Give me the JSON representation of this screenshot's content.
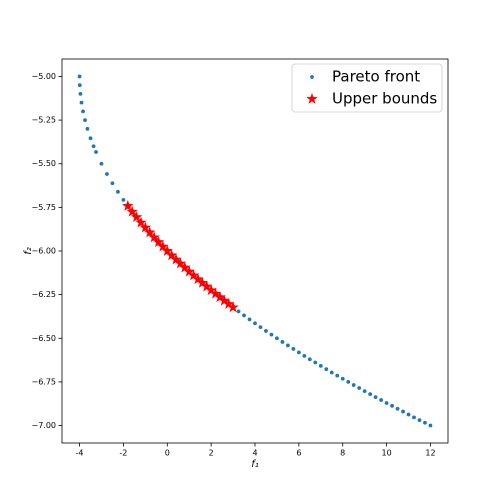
{
  "chart_data": {
    "type": "scatter",
    "x_label": "f₁",
    "y_label": "f₂",
    "xlim": [
      -4.8,
      12.8
    ],
    "ylim": [
      -7.1,
      -4.9
    ],
    "xticks": [
      -4,
      -2,
      0,
      2,
      4,
      6,
      8,
      10,
      12
    ],
    "yticks": [
      {
        "value": -5,
        "label": "−5.00"
      },
      {
        "value": -5.25,
        "label": "−5.25"
      },
      {
        "value": -5.5,
        "label": "−5.50"
      },
      {
        "value": -5.75,
        "label": "−5.75"
      },
      {
        "value": -6,
        "label": "−6.00"
      },
      {
        "value": -6.25,
        "label": "−6.25"
      },
      {
        "value": -6.5,
        "label": "−6.50"
      },
      {
        "value": -6.75,
        "label": "−6.75"
      },
      {
        "value": -7,
        "label": "−7.00"
      }
    ],
    "legend": "upper right",
    "series": [
      {
        "name": "Pareto front",
        "color": "#1f77b4",
        "marker": "dot",
        "x": [
          -4,
          -3.99,
          -3.96,
          -3.91,
          -3.84,
          -3.75,
          -3.64,
          -3.5,
          -3.36,
          -3.25,
          -3,
          -2.75,
          -2.5,
          -2.25,
          -2,
          -1.75,
          -1.5,
          -1.25,
          -1,
          -0.75,
          -0.5,
          -0.25,
          0,
          0.25,
          0.5,
          0.75,
          1,
          1.25,
          1.5,
          1.75,
          2,
          2.25,
          2.5,
          2.75,
          3,
          3.25,
          3.5,
          3.75,
          4,
          4.25,
          4.5,
          4.75,
          5,
          5.25,
          5.5,
          5.75,
          6,
          6.25,
          6.5,
          6.75,
          7,
          7.25,
          7.5,
          7.75,
          8,
          8.25,
          8.5,
          8.75,
          9,
          9.25,
          9.5,
          9.75,
          10,
          10.25,
          10.5,
          10.75,
          11,
          11.25,
          11.5,
          11.75,
          12
        ],
        "values": [
          -5,
          -5.05,
          -5.1,
          -5.15,
          -5.2,
          -5.25,
          -5.3,
          -5.354,
          -5.4,
          -5.433,
          -5.5,
          -5.559,
          -5.612,
          -5.661,
          -5.707,
          -5.75,
          -5.791,
          -5.829,
          -5.866,
          -5.901,
          -5.935,
          -5.968,
          -6,
          -6.031,
          -6.061,
          -6.09,
          -6.118,
          -6.146,
          -6.173,
          -6.199,
          -6.225,
          -6.25,
          -6.275,
          -6.299,
          -6.323,
          -6.346,
          -6.369,
          -6.392,
          -6.414,
          -6.436,
          -6.458,
          -6.479,
          -6.5,
          -6.521,
          -6.541,
          -6.561,
          -6.581,
          -6.601,
          -6.62,
          -6.639,
          -6.658,
          -6.677,
          -6.696,
          -6.714,
          -6.732,
          -6.75,
          -6.768,
          -6.785,
          -6.803,
          -6.82,
          -6.837,
          -6.854,
          -6.871,
          -6.887,
          -6.904,
          -6.92,
          -6.937,
          -6.953,
          -6.969,
          -6.984,
          -7
        ]
      },
      {
        "name": "Upper bounds",
        "color": "#ff0000",
        "marker": "star",
        "x": [
          -1.8,
          -1.6,
          -1.4,
          -1.2,
          -1,
          -0.8,
          -0.6,
          -0.4,
          -0.2,
          0,
          0.2,
          0.4,
          0.6,
          0.8,
          1,
          1.2,
          1.4,
          1.6,
          1.8,
          2,
          2.2,
          2.4,
          2.6,
          2.8,
          3
        ],
        "values": [
          -5.742,
          -5.775,
          -5.806,
          -5.837,
          -5.866,
          -5.894,
          -5.922,
          -5.949,
          -5.975,
          -6,
          -6.025,
          -6.049,
          -6.072,
          -6.095,
          -6.118,
          -6.14,
          -6.162,
          -6.183,
          -6.204,
          -6.225,
          -6.245,
          -6.265,
          -6.285,
          -6.304,
          -6.323
        ]
      }
    ]
  }
}
